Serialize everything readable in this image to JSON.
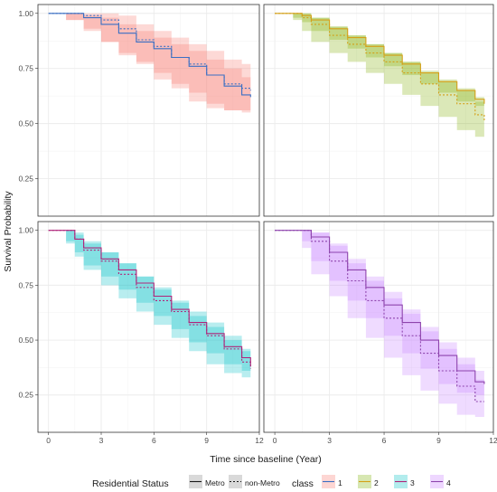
{
  "chart_data": {
    "type": "line",
    "subtype": "kaplan-meier survival curves with confidence bands, faceted 2x2",
    "xlabel": "Time since baseline (Year)",
    "ylabel": "Survival Probability",
    "xlim": [
      -0.6,
      12.0
    ],
    "ylim": [
      0.08,
      1.04
    ],
    "x_ticks": [
      0,
      3,
      6,
      9,
      12
    ],
    "y_ticks_top": [
      0.25,
      0.5,
      0.75,
      1.0
    ],
    "y_ticks_top_labels": [
      "0.25",
      "0.50",
      "0.75",
      "1.00"
    ],
    "y_ticks_bottom": [
      0.25,
      0.5,
      0.75,
      1.0
    ],
    "y_ticks_bottom_labels": [
      "0.25",
      "0.50",
      "0.75",
      "1.00"
    ],
    "grid": true,
    "legend": {
      "position": "bottom",
      "linetype_title": "Residential Status",
      "linetype_entries": [
        {
          "label": "Metro",
          "dash": "solid"
        },
        {
          "label": "non-Metro",
          "dash": "dotted"
        }
      ],
      "class_title": "class",
      "class_entries": [
        {
          "label": "1",
          "line": "#3a6fc4",
          "fill": "#f8766d"
        },
        {
          "label": "2",
          "line": "#d4a017",
          "fill": "#7cae00"
        },
        {
          "label": "3",
          "line": "#b0247a",
          "fill": "#00bfc4"
        },
        {
          "label": "4",
          "line": "#8e44ad",
          "fill": "#c77cff"
        }
      ]
    },
    "panels": [
      {
        "class": "1",
        "line_color": "#3a6fc4",
        "fill_color": "#f8766d",
        "series": [
          {
            "name": "Metro",
            "dash": "solid",
            "x": [
              0,
              1,
              2,
              3,
              4,
              5,
              6,
              7,
              8,
              9,
              10,
              11,
              11.5
            ],
            "y": [
              1.0,
              1.0,
              0.98,
              0.95,
              0.91,
              0.87,
              0.84,
              0.8,
              0.76,
              0.72,
              0.67,
              0.63,
              0.62
            ],
            "lower": [
              1.0,
              1.0,
              0.97,
              0.92,
              0.87,
              0.82,
              0.78,
              0.73,
              0.68,
              0.64,
              0.59,
              0.56,
              0.55
            ],
            "upper": [
              1.0,
              1.0,
              0.99,
              0.98,
              0.95,
              0.92,
              0.89,
              0.86,
              0.83,
              0.79,
              0.75,
              0.71,
              0.7
            ]
          },
          {
            "name": "non-Metro",
            "dash": "dotted",
            "x": [
              0,
              1,
              2,
              3,
              4,
              5,
              6,
              7,
              8,
              9,
              10,
              11,
              11.5
            ],
            "y": [
              1.0,
              1.0,
              0.99,
              0.97,
              0.93,
              0.88,
              0.85,
              0.8,
              0.77,
              0.72,
              0.68,
              0.66,
              0.65
            ],
            "lower": [
              1.0,
              1.0,
              0.97,
              0.93,
              0.87,
              0.81,
              0.77,
              0.7,
              0.66,
              0.6,
              0.57,
              0.56,
              0.56
            ],
            "upper": [
              1.0,
              1.0,
              1.0,
              1.0,
              0.99,
              0.95,
              0.92,
              0.89,
              0.86,
              0.83,
              0.79,
              0.77,
              0.76
            ]
          }
        ]
      },
      {
        "class": "2",
        "line_color": "#d4a017",
        "fill_color": "#7cae00",
        "series": [
          {
            "name": "Metro",
            "dash": "solid",
            "x": [
              0,
              1,
              1.5,
              2,
              3,
              4,
              5,
              6,
              7,
              8,
              9,
              10,
              11,
              11.5
            ],
            "y": [
              1.0,
              1.0,
              0.99,
              0.97,
              0.93,
              0.89,
              0.85,
              0.81,
              0.77,
              0.73,
              0.69,
              0.65,
              0.61,
              0.59
            ],
            "lower": [
              1.0,
              1.0,
              0.98,
              0.96,
              0.92,
              0.88,
              0.84,
              0.8,
              0.76,
              0.72,
              0.68,
              0.64,
              0.6,
              0.58
            ],
            "upper": [
              1.0,
              1.0,
              1.0,
              0.98,
              0.94,
              0.9,
              0.86,
              0.82,
              0.78,
              0.74,
              0.7,
              0.66,
              0.62,
              0.6
            ]
          },
          {
            "name": "non-Metro",
            "dash": "dotted",
            "x": [
              0,
              1,
              1.5,
              2,
              3,
              4,
              5,
              6,
              7,
              8,
              9,
              10,
              11,
              11.5
            ],
            "y": [
              1.0,
              1.0,
              0.98,
              0.95,
              0.9,
              0.86,
              0.82,
              0.78,
              0.73,
              0.68,
              0.63,
              0.59,
              0.54,
              0.51
            ],
            "lower": [
              1.0,
              1.0,
              0.97,
              0.92,
              0.87,
              0.82,
              0.78,
              0.73,
              0.68,
              0.63,
              0.58,
              0.53,
              0.47,
              0.44
            ],
            "upper": [
              1.0,
              1.0,
              1.0,
              0.98,
              0.94,
              0.9,
              0.86,
              0.82,
              0.78,
              0.73,
              0.69,
              0.65,
              0.6,
              0.58
            ]
          }
        ]
      },
      {
        "class": "3",
        "line_color": "#b0247a",
        "fill_color": "#00bfc4",
        "series": [
          {
            "name": "Metro",
            "dash": "solid",
            "x": [
              0,
              1,
              1.5,
              2,
              3,
              4,
              5,
              6,
              7,
              8,
              9,
              10,
              11,
              11.5
            ],
            "y": [
              1.0,
              1.0,
              0.96,
              0.92,
              0.87,
              0.82,
              0.76,
              0.7,
              0.64,
              0.58,
              0.53,
              0.47,
              0.42,
              0.38
            ],
            "lower": [
              1.0,
              1.0,
              0.95,
              0.9,
              0.84,
              0.79,
              0.73,
              0.67,
              0.61,
              0.55,
              0.49,
              0.44,
              0.39,
              0.36
            ],
            "upper": [
              1.0,
              1.0,
              0.98,
              0.94,
              0.9,
              0.85,
              0.79,
              0.73,
              0.67,
              0.61,
              0.56,
              0.5,
              0.45,
              0.42
            ]
          },
          {
            "name": "non-Metro",
            "dash": "dotted",
            "x": [
              0,
              1,
              1.5,
              2,
              3,
              4,
              5,
              6,
              7,
              8,
              9,
              10,
              11,
              11.5
            ],
            "y": [
              1.0,
              1.0,
              0.96,
              0.91,
              0.86,
              0.8,
              0.74,
              0.68,
              0.63,
              0.57,
              0.52,
              0.46,
              0.4,
              0.37
            ],
            "lower": [
              1.0,
              1.0,
              0.94,
              0.88,
              0.82,
              0.75,
              0.69,
              0.63,
              0.57,
              0.51,
              0.45,
              0.39,
              0.35,
              0.33
            ],
            "upper": [
              1.0,
              1.0,
              0.99,
              0.95,
              0.9,
              0.85,
              0.79,
              0.74,
              0.68,
              0.63,
              0.58,
              0.52,
              0.46,
              0.42
            ]
          }
        ]
      },
      {
        "class": "4",
        "line_color": "#8e44ad",
        "fill_color": "#c77cff",
        "series": [
          {
            "name": "Metro",
            "dash": "solid",
            "x": [
              0,
              1.5,
              2,
              3,
              4,
              5,
              6,
              7,
              8,
              9,
              10,
              11,
              11.5
            ],
            "y": [
              1.0,
              1.0,
              0.97,
              0.9,
              0.82,
              0.74,
              0.66,
              0.58,
              0.5,
              0.43,
              0.36,
              0.31,
              0.3
            ],
            "lower": [
              1.0,
              1.0,
              0.95,
              0.86,
              0.77,
              0.68,
              0.6,
              0.52,
              0.44,
              0.37,
              0.3,
              0.26,
              0.25
            ],
            "upper": [
              1.0,
              1.0,
              0.99,
              0.94,
              0.87,
              0.79,
              0.72,
              0.64,
              0.56,
              0.49,
              0.42,
              0.36,
              0.35
            ]
          },
          {
            "name": "non-Metro",
            "dash": "dotted",
            "x": [
              0,
              1.5,
              2,
              3,
              4,
              5,
              6,
              7,
              8,
              9,
              10,
              11,
              11.5
            ],
            "y": [
              1.0,
              1.0,
              0.95,
              0.86,
              0.77,
              0.68,
              0.6,
              0.52,
              0.44,
              0.36,
              0.29,
              0.22,
              0.22
            ],
            "lower": [
              1.0,
              1.0,
              0.92,
              0.8,
              0.7,
              0.6,
              0.51,
              0.42,
              0.34,
              0.27,
              0.21,
              0.16,
              0.15
            ],
            "upper": [
              1.0,
              1.0,
              0.99,
              0.93,
              0.85,
              0.77,
              0.69,
              0.62,
              0.54,
              0.46,
              0.39,
              0.32,
              0.31
            ]
          }
        ]
      }
    ]
  }
}
